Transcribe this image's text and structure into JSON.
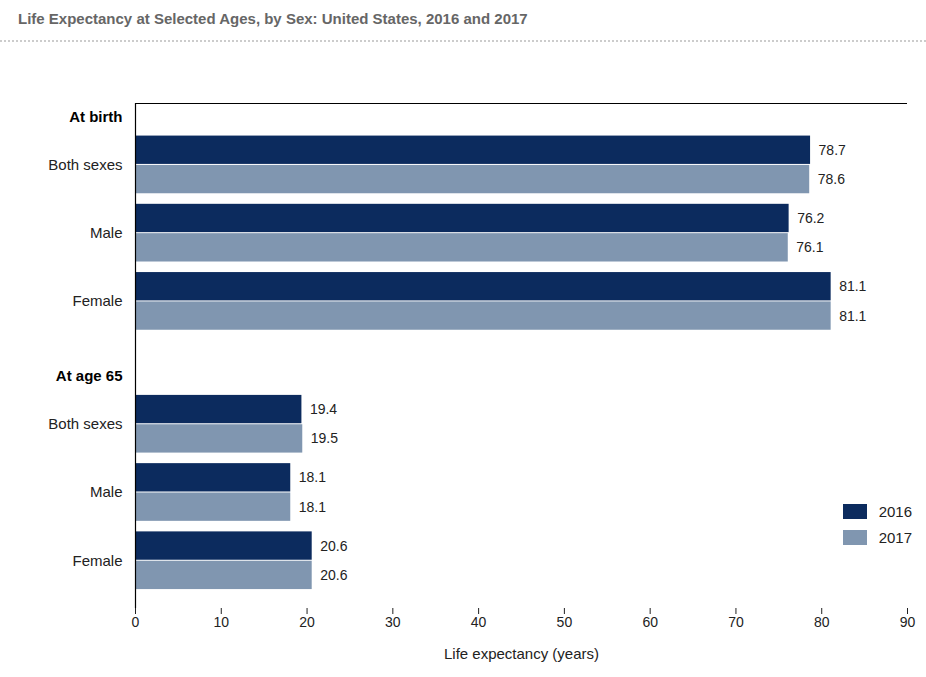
{
  "chart_data": {
    "type": "bar",
    "title": "Life Expectancy at Selected Ages, by Sex: United States, 2016 and 2017",
    "orientation": "horizontal",
    "x_label": "Life expectancy (years)",
    "groups": [
      {
        "name": "At birth",
        "categories": [
          "Both sexes",
          "Male",
          "Female"
        ]
      },
      {
        "name": "At age 65",
        "categories": [
          "Both sexes",
          "Male",
          "Female"
        ]
      }
    ],
    "series": [
      {
        "name": "2016",
        "color": "#0c2b5e",
        "values": [
          78.7,
          76.2,
          81.1,
          19.4,
          18.1,
          20.6
        ]
      },
      {
        "name": "2017",
        "color": "#8096b0",
        "values": [
          78.6,
          76.1,
          81.1,
          19.5,
          18.1,
          20.6
        ]
      }
    ],
    "xlim": [
      0,
      90
    ],
    "xticks": [
      0,
      10,
      20,
      30,
      40,
      50,
      60,
      70,
      80,
      90
    ],
    "data_labels": true,
    "legend": "bottom-right",
    "grid": false
  }
}
